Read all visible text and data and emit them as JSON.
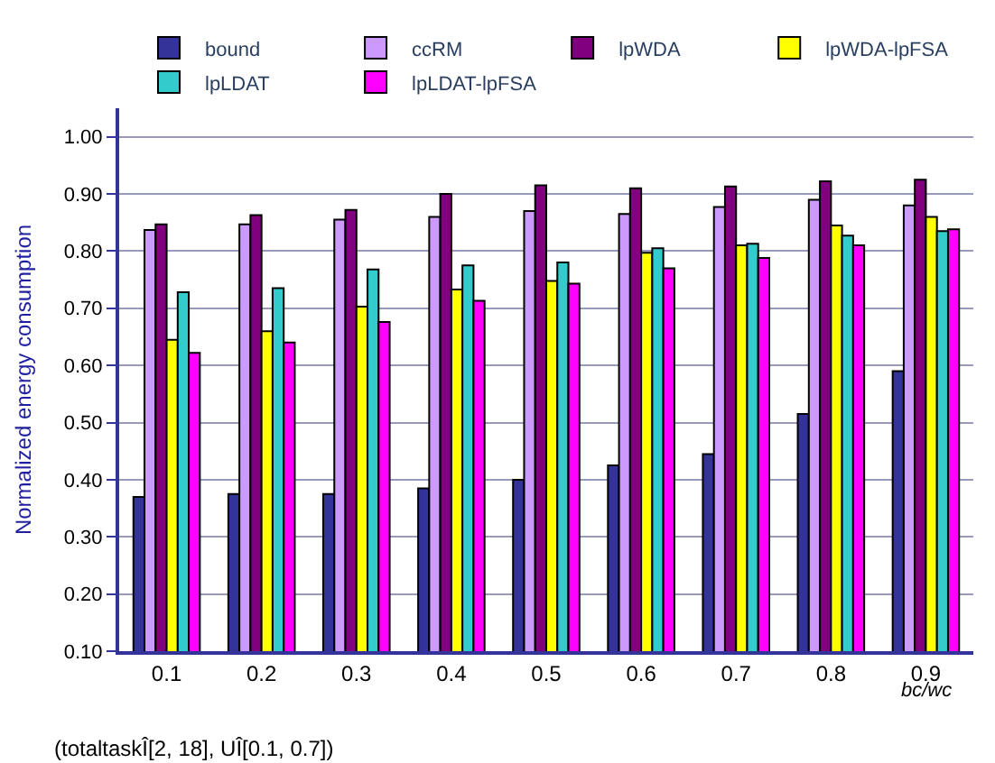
{
  "chart_data": {
    "type": "bar",
    "xlabel": "bc/wc",
    "ylabel": "Normalized energy consumption",
    "categories": [
      "0.1",
      "0.2",
      "0.3",
      "0.4",
      "0.5",
      "0.6",
      "0.7",
      "0.8",
      "0.9"
    ],
    "series": [
      {
        "name": "bound",
        "color": "#333399",
        "values": [
          0.37,
          0.375,
          0.375,
          0.385,
          0.4,
          0.425,
          0.445,
          0.515,
          0.59
        ]
      },
      {
        "name": "ccRM",
        "color": "#cc99ff",
        "values": [
          0.837,
          0.847,
          0.855,
          0.86,
          0.87,
          0.865,
          0.877,
          0.89,
          0.88
        ]
      },
      {
        "name": "lpWDA",
        "color": "#800080",
        "values": [
          0.847,
          0.863,
          0.872,
          0.9,
          0.915,
          0.91,
          0.913,
          0.922,
          0.925
        ]
      },
      {
        "name": "lpWDA-lpFSA",
        "color": "#ffff00",
        "values": [
          0.645,
          0.66,
          0.703,
          0.733,
          0.748,
          0.797,
          0.81,
          0.845,
          0.86
        ]
      },
      {
        "name": "lpLDAT",
        "color": "#33cccc",
        "values": [
          0.728,
          0.735,
          0.768,
          0.775,
          0.78,
          0.805,
          0.813,
          0.827,
          0.835
        ]
      },
      {
        "name": "lpLDAT-lpFSA",
        "color": "#ff00ff",
        "values": [
          0.622,
          0.64,
          0.676,
          0.713,
          0.743,
          0.77,
          0.788,
          0.81,
          0.838
        ]
      }
    ],
    "ylim": [
      0.1,
      1.05
    ],
    "yticks": [
      {
        "value": 0.1,
        "label": "0.10"
      },
      {
        "value": 0.2,
        "label": "0.20"
      },
      {
        "value": 0.3,
        "label": "0.30"
      },
      {
        "value": 0.4,
        "label": "0.40"
      },
      {
        "value": 0.5,
        "label": "0.50"
      },
      {
        "value": 0.6,
        "label": "0.60"
      },
      {
        "value": 0.7,
        "label": "0.70"
      },
      {
        "value": 0.8,
        "label": "0.80"
      },
      {
        "value": 0.9,
        "label": "0.90"
      },
      {
        "value": 1.0,
        "label": "1.00"
      }
    ],
    "grid": "y",
    "legend": "top",
    "annotations": [
      "(totaltaskÎ[2, 18], UÎ[0.1, 0.7])"
    ]
  }
}
